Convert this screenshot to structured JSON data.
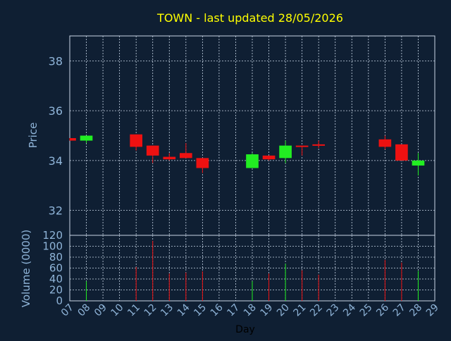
{
  "chart_data": [
    {
      "type": "candlestick",
      "title": "TOWN - last updated 28/05/2026",
      "ylabel": "Price",
      "ylim": [
        31,
        39
      ],
      "yticks": [
        32,
        34,
        36,
        38
      ],
      "x_categories": [
        "07",
        "08",
        "09",
        "10",
        "11",
        "12",
        "13",
        "14",
        "15",
        "16",
        "17",
        "18",
        "19",
        "20",
        "21",
        "22",
        "23",
        "24",
        "25",
        "26",
        "27",
        "28",
        "29"
      ],
      "grid": true,
      "colors": {
        "up": "#22ee22",
        "down": "#ee1111"
      },
      "candles": [
        {
          "day": "07",
          "open": 34.9,
          "close": 34.8,
          "high": 34.9,
          "low": 34.8
        },
        {
          "day": "08",
          "open": 34.8,
          "close": 35.0,
          "high": 35.0,
          "low": 34.7
        },
        {
          "day": "11",
          "open": 35.05,
          "close": 34.55,
          "high": 35.05,
          "low": 34.4
        },
        {
          "day": "12",
          "open": 34.6,
          "close": 34.2,
          "high": 34.6,
          "low": 33.9
        },
        {
          "day": "13",
          "open": 34.15,
          "close": 34.05,
          "high": 34.3,
          "low": 34.0
        },
        {
          "day": "14",
          "open": 34.3,
          "close": 34.1,
          "high": 34.7,
          "low": 34.1
        },
        {
          "day": "15",
          "open": 34.1,
          "close": 33.7,
          "high": 34.1,
          "low": 33.5
        },
        {
          "day": "18",
          "open": 33.7,
          "close": 34.25,
          "high": 34.3,
          "low": 33.7
        },
        {
          "day": "19",
          "open": 34.2,
          "close": 34.05,
          "high": 34.2,
          "low": 34.0
        },
        {
          "day": "20",
          "open": 34.1,
          "close": 34.6,
          "high": 34.8,
          "low": 33.9
        },
        {
          "day": "21",
          "open": 34.6,
          "close": 34.55,
          "high": 34.6,
          "low": 34.2
        },
        {
          "day": "22",
          "open": 34.65,
          "close": 34.6,
          "high": 34.8,
          "low": 34.5
        },
        {
          "day": "26",
          "open": 34.85,
          "close": 34.55,
          "high": 35.0,
          "low": 34.45
        },
        {
          "day": "27",
          "open": 34.65,
          "close": 34.0,
          "high": 34.65,
          "low": 34.0
        },
        {
          "day": "28",
          "open": 33.8,
          "close": 34.0,
          "high": 34.3,
          "low": 33.4
        }
      ]
    },
    {
      "type": "bar",
      "ylabel": "Volume (0000)",
      "xlabel": "Day",
      "ylim": [
        0,
        120
      ],
      "yticks": [
        0,
        20,
        40,
        60,
        80,
        100,
        120
      ],
      "x_categories": [
        "07",
        "08",
        "09",
        "10",
        "11",
        "12",
        "13",
        "14",
        "15",
        "16",
        "17",
        "18",
        "19",
        "20",
        "21",
        "22",
        "23",
        "24",
        "25",
        "26",
        "27",
        "28",
        "29"
      ],
      "bars": [
        {
          "day": "07",
          "value": 0,
          "dir": "down"
        },
        {
          "day": "08",
          "value": 36,
          "dir": "up"
        },
        {
          "day": "11",
          "value": 62,
          "dir": "down"
        },
        {
          "day": "12",
          "value": 110,
          "dir": "down"
        },
        {
          "day": "13",
          "value": 50,
          "dir": "down"
        },
        {
          "day": "14",
          "value": 52,
          "dir": "down"
        },
        {
          "day": "15",
          "value": 54,
          "dir": "down"
        },
        {
          "day": "18",
          "value": 36,
          "dir": "up"
        },
        {
          "day": "19",
          "value": 50,
          "dir": "down"
        },
        {
          "day": "20",
          "value": 68,
          "dir": "up"
        },
        {
          "day": "21",
          "value": 56,
          "dir": "down"
        },
        {
          "day": "22",
          "value": 48,
          "dir": "down"
        },
        {
          "day": "26",
          "value": 75,
          "dir": "down"
        },
        {
          "day": "27",
          "value": 70,
          "dir": "down"
        },
        {
          "day": "28",
          "value": 55,
          "dir": "up"
        }
      ]
    }
  ],
  "colors": {
    "background": "#0f1f33",
    "title": "#ffff00",
    "axis_text": "#8fb4d8",
    "grid": "#c8d6e6",
    "frame": "#c8d6e6"
  }
}
